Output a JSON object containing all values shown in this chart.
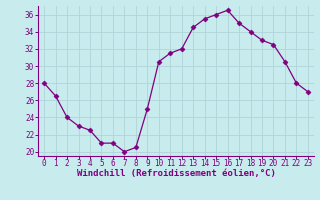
{
  "x": [
    0,
    1,
    2,
    3,
    4,
    5,
    6,
    7,
    8,
    9,
    10,
    11,
    12,
    13,
    14,
    15,
    16,
    17,
    18,
    19,
    20,
    21,
    22,
    23
  ],
  "y": [
    28,
    26.5,
    24,
    23,
    22.5,
    21,
    21,
    20,
    20.5,
    25,
    30.5,
    31.5,
    32,
    34.5,
    35.5,
    36,
    36.5,
    35,
    34,
    33,
    32.5,
    30.5,
    28,
    27
  ],
  "line_color": "#800080",
  "marker": "D",
  "marker_size": 2.5,
  "bg_color": "#c8ecee",
  "grid_color": "#b0d4d8",
  "xlabel": "Windchill (Refroidissement éolien,°C)",
  "ylim": [
    19.5,
    37
  ],
  "yticks": [
    20,
    22,
    24,
    26,
    28,
    30,
    32,
    34,
    36
  ],
  "xlim": [
    -0.5,
    23.5
  ],
  "xticks": [
    0,
    1,
    2,
    3,
    4,
    5,
    6,
    7,
    8,
    9,
    10,
    11,
    12,
    13,
    14,
    15,
    16,
    17,
    18,
    19,
    20,
    21,
    22,
    23
  ],
  "tick_fontsize": 5.5,
  "label_fontsize": 6.5,
  "spine_color": "#800080",
  "axis_color": "#800080"
}
